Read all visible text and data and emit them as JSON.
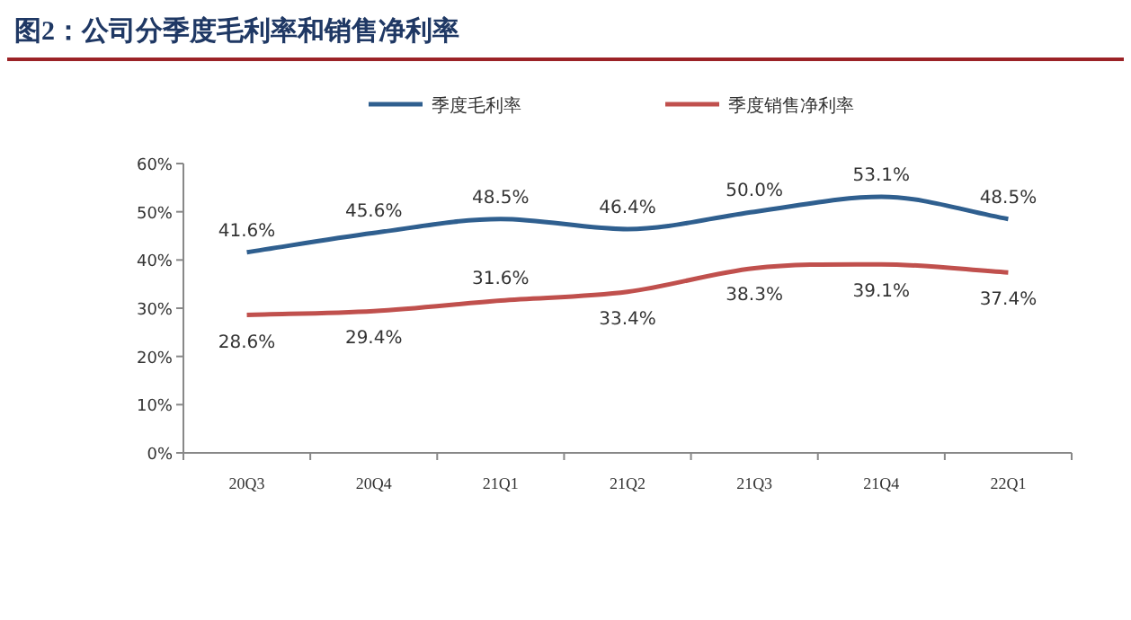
{
  "chart_data": {
    "type": "line",
    "title": "图2：公司分季度毛利率和销售净利率",
    "categories": [
      "20Q3",
      "20Q4",
      "21Q1",
      "21Q2",
      "21Q3",
      "21Q4",
      "22Q1"
    ],
    "series": [
      {
        "name": "季度毛利率",
        "color": "#2f5f8f",
        "values": [
          41.6,
          45.6,
          48.5,
          46.4,
          50.0,
          53.1,
          48.5
        ],
        "value_labels": [
          "41.6%",
          "45.6%",
          "48.5%",
          "46.4%",
          "50.0%",
          "53.1%",
          "48.5%"
        ]
      },
      {
        "name": "季度销售净利率",
        "color": "#c0504d",
        "values": [
          28.6,
          29.4,
          31.6,
          33.4,
          38.3,
          39.1,
          37.4
        ],
        "value_labels": [
          "28.6%",
          "29.4%",
          "31.6%",
          "33.4%",
          "38.3%",
          "39.1%",
          "37.4%"
        ]
      }
    ],
    "ylim": [
      0,
      60
    ],
    "yticks": [
      {
        "value": 0,
        "label": "0%"
      },
      {
        "value": 10,
        "label": "10%"
      },
      {
        "value": 20,
        "label": "20%"
      },
      {
        "value": 30,
        "label": "30%"
      },
      {
        "value": 40,
        "label": "40%"
      },
      {
        "value": 50,
        "label": "50%"
      },
      {
        "value": 60,
        "label": "60%"
      }
    ],
    "grid": false,
    "legend": "top",
    "marker": "none",
    "line_style": "solid"
  }
}
